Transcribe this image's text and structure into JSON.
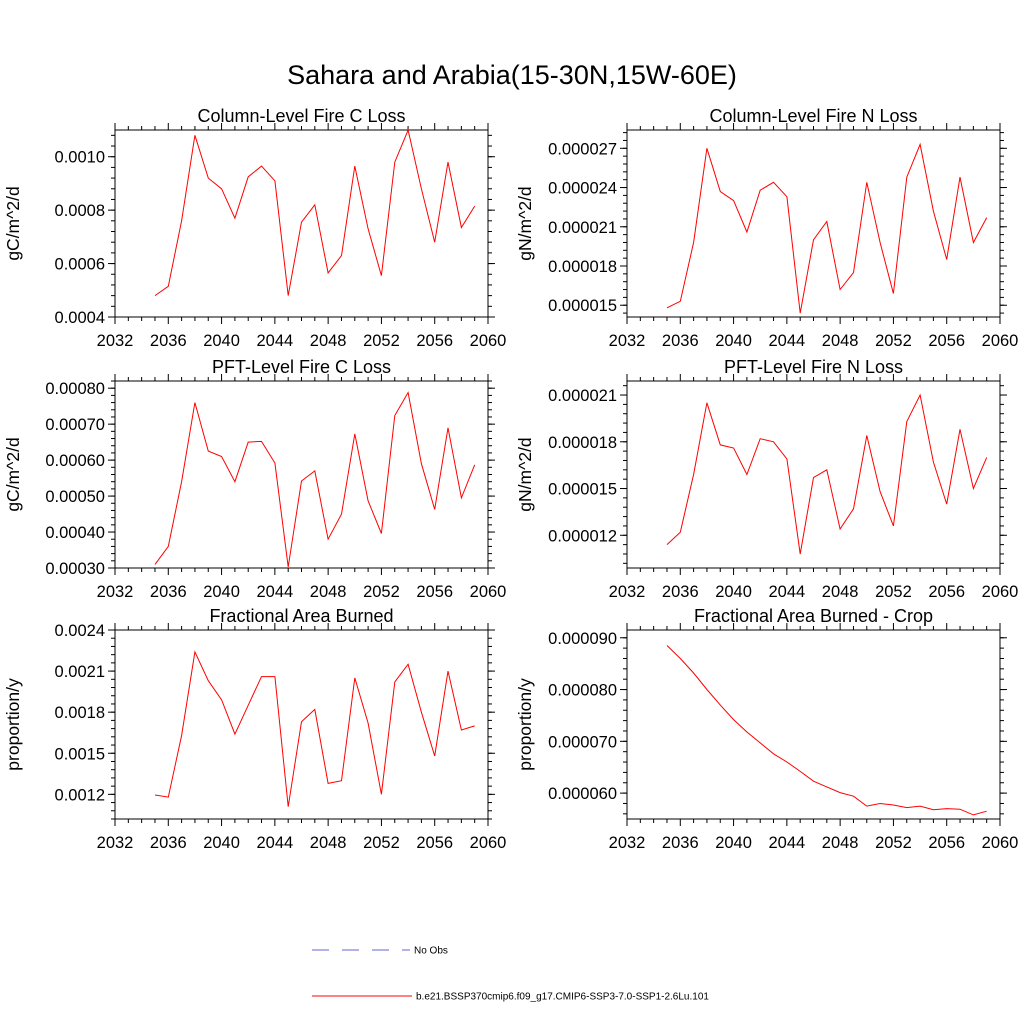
{
  "figure": {
    "title": "Sahara and Arabia(15-30N,15W-60E)",
    "line_color": "#ff0000",
    "obs_color": "#6666cc"
  },
  "legend": {
    "obs_label": "No Obs",
    "model_label": "b.e21.BSSP370cmip6.f09_g17.CMIP6-SSP3-7.0-SSP1-2.6Lu.101"
  },
  "chart_data": [
    {
      "type": "line",
      "title": "Column-Level Fire C Loss",
      "ylabel": "gC/m^2/d",
      "xlim": [
        2032,
        2060
      ],
      "ylim": [
        0.0004,
        0.0011
      ],
      "x_ticks": [
        2032,
        2036,
        2040,
        2044,
        2048,
        2052,
        2056,
        2060
      ],
      "y_ticks": [
        0.0004,
        0.0006,
        0.0008,
        0.001
      ],
      "y_tick_labels": [
        "0.0004",
        "0.0006",
        "0.0008",
        "0.0010"
      ],
      "series": [
        {
          "x": [
            2035,
            2036,
            2037,
            2038,
            2039,
            2040,
            2041,
            2042,
            2043,
            2044,
            2045,
            2046,
            2047,
            2048,
            2049,
            2050,
            2051,
            2052,
            2053,
            2054,
            2055,
            2056,
            2057,
            2058,
            2059
          ],
          "values": [
            0.00048,
            0.000515,
            0.00076,
            0.00108,
            0.00092,
            0.00088,
            0.00077,
            0.000925,
            0.000965,
            0.00091,
            0.00048,
            0.000755,
            0.00082,
            0.000565,
            0.00063,
            0.000965,
            0.00073,
            0.000555,
            0.00098,
            0.0011,
            0.00088,
            0.00068,
            0.00098,
            0.000735,
            0.000815
          ]
        }
      ]
    },
    {
      "type": "line",
      "title": "Column-Level Fire N Loss",
      "ylabel": "gN/m^2/d",
      "xlim": [
        2032,
        2060
      ],
      "ylim": [
        1.41e-05,
        2.84e-05
      ],
      "x_ticks": [
        2032,
        2036,
        2040,
        2044,
        2048,
        2052,
        2056,
        2060
      ],
      "y_ticks": [
        1.5e-05,
        1.8e-05,
        2.1e-05,
        2.4e-05,
        2.7e-05
      ],
      "y_tick_labels": [
        "0.000015",
        "0.000018",
        "0.000021",
        "0.000024",
        "0.000027"
      ],
      "series": [
        {
          "x": [
            2035,
            2036,
            2037,
            2038,
            2039,
            2040,
            2041,
            2042,
            2043,
            2044,
            2045,
            2046,
            2047,
            2048,
            2049,
            2050,
            2051,
            2052,
            2053,
            2054,
            2055,
            2056,
            2057,
            2058,
            2059
          ],
          "values": [
            1.48e-05,
            1.53e-05,
            1.98e-05,
            2.7e-05,
            2.37e-05,
            2.3e-05,
            2.06e-05,
            2.38e-05,
            2.44e-05,
            2.33e-05,
            1.44e-05,
            2e-05,
            2.14e-05,
            1.62e-05,
            1.75e-05,
            2.44e-05,
            1.98e-05,
            1.59e-05,
            2.48e-05,
            2.73e-05,
            2.22e-05,
            1.85e-05,
            2.48e-05,
            1.98e-05,
            2.17e-05
          ]
        }
      ]
    },
    {
      "type": "line",
      "title": "PFT-Level Fire C Loss",
      "ylabel": "gC/m^2/d",
      "xlim": [
        2032,
        2060
      ],
      "ylim": [
        0.0003,
        0.00082
      ],
      "x_ticks": [
        2032,
        2036,
        2040,
        2044,
        2048,
        2052,
        2056,
        2060
      ],
      "y_ticks": [
        0.0003,
        0.0004,
        0.0005,
        0.0006,
        0.0007,
        0.0008
      ],
      "y_tick_labels": [
        "0.00030",
        "0.00040",
        "0.00050",
        "0.00060",
        "0.00070",
        "0.00080"
      ],
      "series": [
        {
          "x": [
            2035,
            2036,
            2037,
            2038,
            2039,
            2040,
            2041,
            2042,
            2043,
            2044,
            2045,
            2046,
            2047,
            2048,
            2049,
            2050,
            2051,
            2052,
            2053,
            2054,
            2055,
            2056,
            2057,
            2058,
            2059
          ],
          "values": [
            0.00031,
            0.00036,
            0.00054,
            0.00076,
            0.000625,
            0.00061,
            0.00054,
            0.00065,
            0.000652,
            0.000592,
            0.000303,
            0.000542,
            0.00057,
            0.00038,
            0.00045,
            0.000673,
            0.000487,
            0.000396,
            0.000724,
            0.000788,
            0.00059,
            0.000463,
            0.00069,
            0.000495,
            0.000587
          ]
        }
      ]
    },
    {
      "type": "line",
      "title": "PFT-Level Fire N Loss",
      "ylabel": "gN/m^2/d",
      "xlim": [
        2032,
        2060
      ],
      "ylim": [
        9.9e-06,
        2.19e-05
      ],
      "x_ticks": [
        2032,
        2036,
        2040,
        2044,
        2048,
        2052,
        2056,
        2060
      ],
      "y_ticks": [
        1.2e-05,
        1.5e-05,
        1.8e-05,
        2.1e-05
      ],
      "y_tick_labels": [
        "0.000012",
        "0.000015",
        "0.000018",
        "0.000021"
      ],
      "series": [
        {
          "x": [
            2035,
            2036,
            2037,
            2038,
            2039,
            2040,
            2041,
            2042,
            2043,
            2044,
            2045,
            2046,
            2047,
            2048,
            2049,
            2050,
            2051,
            2052,
            2053,
            2054,
            2055,
            2056,
            2057,
            2058,
            2059
          ],
          "values": [
            1.14e-05,
            1.22e-05,
            1.59e-05,
            2.05e-05,
            1.78e-05,
            1.76e-05,
            1.59e-05,
            1.82e-05,
            1.8e-05,
            1.69e-05,
            1.08e-05,
            1.57e-05,
            1.62e-05,
            1.24e-05,
            1.37e-05,
            1.84e-05,
            1.48e-05,
            1.26e-05,
            1.93e-05,
            2.1e-05,
            1.67e-05,
            1.4e-05,
            1.88e-05,
            1.5e-05,
            1.7e-05
          ]
        }
      ]
    },
    {
      "type": "line",
      "title": "Fractional Area Burned",
      "ylabel": "proportion/y",
      "xlim": [
        2032,
        2060
      ],
      "ylim": [
        0.00102,
        0.0024
      ],
      "x_ticks": [
        2032,
        2036,
        2040,
        2044,
        2048,
        2052,
        2056,
        2060
      ],
      "y_ticks": [
        0.0012,
        0.0015,
        0.0018,
        0.0021,
        0.0024
      ],
      "y_tick_labels": [
        "0.0012",
        "0.0015",
        "0.0018",
        "0.0021",
        "0.0024"
      ],
      "series": [
        {
          "x": [
            2035,
            2036,
            2037,
            2038,
            2039,
            2040,
            2041,
            2042,
            2043,
            2044,
            2045,
            2046,
            2047,
            2048,
            2049,
            2050,
            2051,
            2052,
            2053,
            2054,
            2055,
            2056,
            2057,
            2058,
            2059
          ],
          "values": [
            0.001195,
            0.00118,
            0.00163,
            0.00224,
            0.00203,
            0.00189,
            0.00164,
            0.00185,
            0.00206,
            0.00206,
            0.00111,
            0.00173,
            0.00182,
            0.00128,
            0.0013,
            0.00205,
            0.00172,
            0.0012,
            0.00202,
            0.00215,
            0.0018,
            0.00148,
            0.0021,
            0.00167,
            0.0017
          ]
        }
      ]
    },
    {
      "type": "line",
      "title": "Fractional Area Burned - Crop",
      "ylabel": "proportion/y",
      "xlim": [
        2032,
        2060
      ],
      "ylim": [
        5.5e-05,
        9.15e-05
      ],
      "x_ticks": [
        2032,
        2036,
        2040,
        2044,
        2048,
        2052,
        2056,
        2060
      ],
      "y_ticks": [
        6e-05,
        7e-05,
        8e-05,
        9e-05
      ],
      "y_tick_labels": [
        "0.000060",
        "0.000070",
        "0.000080",
        "0.000090"
      ],
      "series": [
        {
          "x": [
            2035,
            2036,
            2037,
            2038,
            2039,
            2040,
            2041,
            2042,
            2043,
            2044,
            2045,
            2046,
            2047,
            2048,
            2049,
            2050,
            2051,
            2052,
            2053,
            2054,
            2055,
            2056,
            2057,
            2058,
            2059
          ],
          "values": [
            8.85e-05,
            8.6e-05,
            8.32e-05,
            8e-05,
            7.7e-05,
            7.42e-05,
            7.18e-05,
            6.97e-05,
            6.76e-05,
            6.6e-05,
            6.42e-05,
            6.23e-05,
            6.12e-05,
            6.01e-05,
            5.94e-05,
            5.75e-05,
            5.8e-05,
            5.77e-05,
            5.72e-05,
            5.75e-05,
            5.68e-05,
            5.7e-05,
            5.69e-05,
            5.58e-05,
            5.65e-05
          ]
        }
      ]
    }
  ]
}
